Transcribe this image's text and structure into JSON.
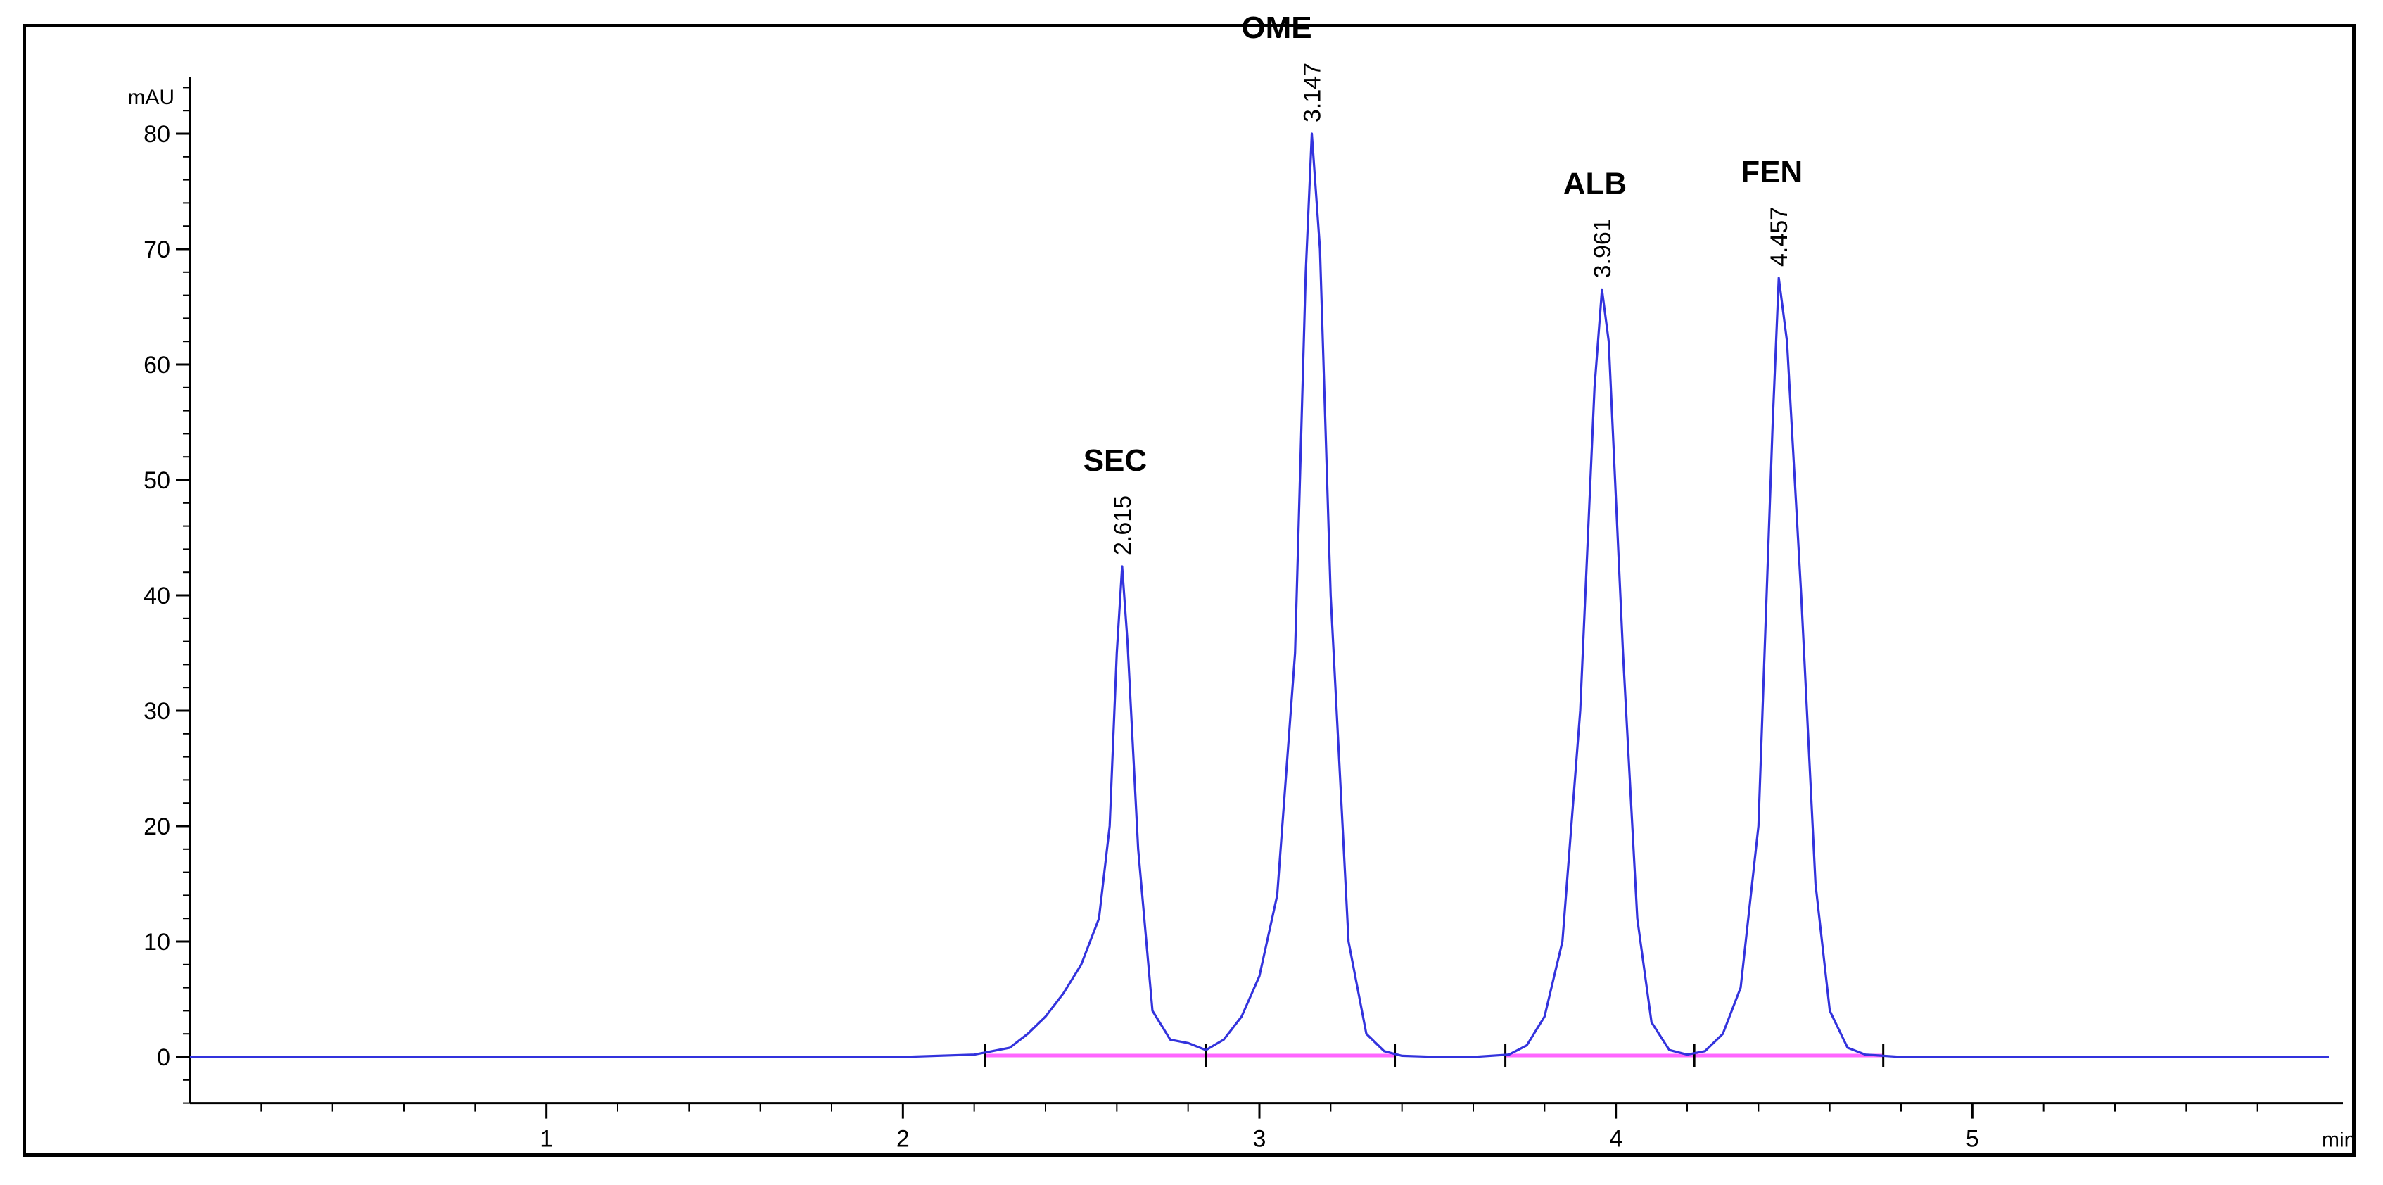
{
  "chart_data": {
    "type": "line",
    "title": "",
    "xlabel": "min",
    "ylabel": "mAU",
    "xlim": [
      0,
      6
    ],
    "ylim": [
      -4,
      85
    ],
    "x_ticks": [
      1,
      2,
      3,
      4,
      5
    ],
    "y_ticks": [
      0,
      10,
      20,
      30,
      40,
      50,
      60,
      70,
      80
    ],
    "x_minor_step": 0.2,
    "y_minor_step": 2,
    "grid": false,
    "colors": {
      "trace": "#3333dd",
      "baseline": "#ff66ff"
    },
    "peaks": [
      {
        "name": "SEC",
        "rt": 2.615,
        "rt_label": "2.615",
        "height": 42.5
      },
      {
        "name": "OME",
        "rt": 3.147,
        "rt_label": "3.147",
        "height": 80
      },
      {
        "name": "ALB",
        "rt": 3.961,
        "rt_label": "3.961",
        "height": 66.5
      },
      {
        "name": "FEN",
        "rt": 4.457,
        "rt_label": "4.457",
        "height": 67.5
      }
    ],
    "integration_ticks": [
      2.23,
      2.85,
      3.38,
      3.69,
      4.22,
      4.75
    ],
    "series": [
      {
        "x": [
          0,
          0.5,
          1.0,
          1.5,
          2.0,
          2.2,
          2.3,
          2.35,
          2.4,
          2.45,
          2.5,
          2.55,
          2.58,
          2.6,
          2.615,
          2.63,
          2.66,
          2.7,
          2.75,
          2.8,
          2.85,
          2.9,
          2.95,
          3.0,
          3.05,
          3.1,
          3.13,
          3.147,
          3.17,
          3.2,
          3.25,
          3.3,
          3.35,
          3.4,
          3.5,
          3.6,
          3.7,
          3.75,
          3.8,
          3.85,
          3.9,
          3.94,
          3.961,
          3.98,
          4.02,
          4.06,
          4.1,
          4.15,
          4.2,
          4.25,
          4.3,
          4.35,
          4.4,
          4.44,
          4.457,
          4.48,
          4.52,
          4.56,
          4.6,
          4.65,
          4.7,
          4.8,
          5.0,
          5.5,
          6.0
        ],
        "y": [
          0,
          0,
          0,
          0,
          0,
          0.2,
          0.8,
          2.0,
          3.5,
          5.5,
          8.0,
          12.0,
          20.0,
          35.0,
          42.5,
          36.0,
          18.0,
          4.0,
          1.5,
          1.2,
          0.6,
          1.5,
          3.5,
          7.0,
          14.0,
          35.0,
          68.0,
          80.0,
          70.0,
          40.0,
          10.0,
          2.0,
          0.5,
          0.1,
          0,
          0,
          0.2,
          1.0,
          3.5,
          10.0,
          30.0,
          58.0,
          66.5,
          62.0,
          35.0,
          12.0,
          3.0,
          0.6,
          0.2,
          0.5,
          2.0,
          6.0,
          20.0,
          55.0,
          67.5,
          62.0,
          40.0,
          15.0,
          4.0,
          0.8,
          0.2,
          0,
          0,
          0,
          0
        ]
      }
    ]
  }
}
